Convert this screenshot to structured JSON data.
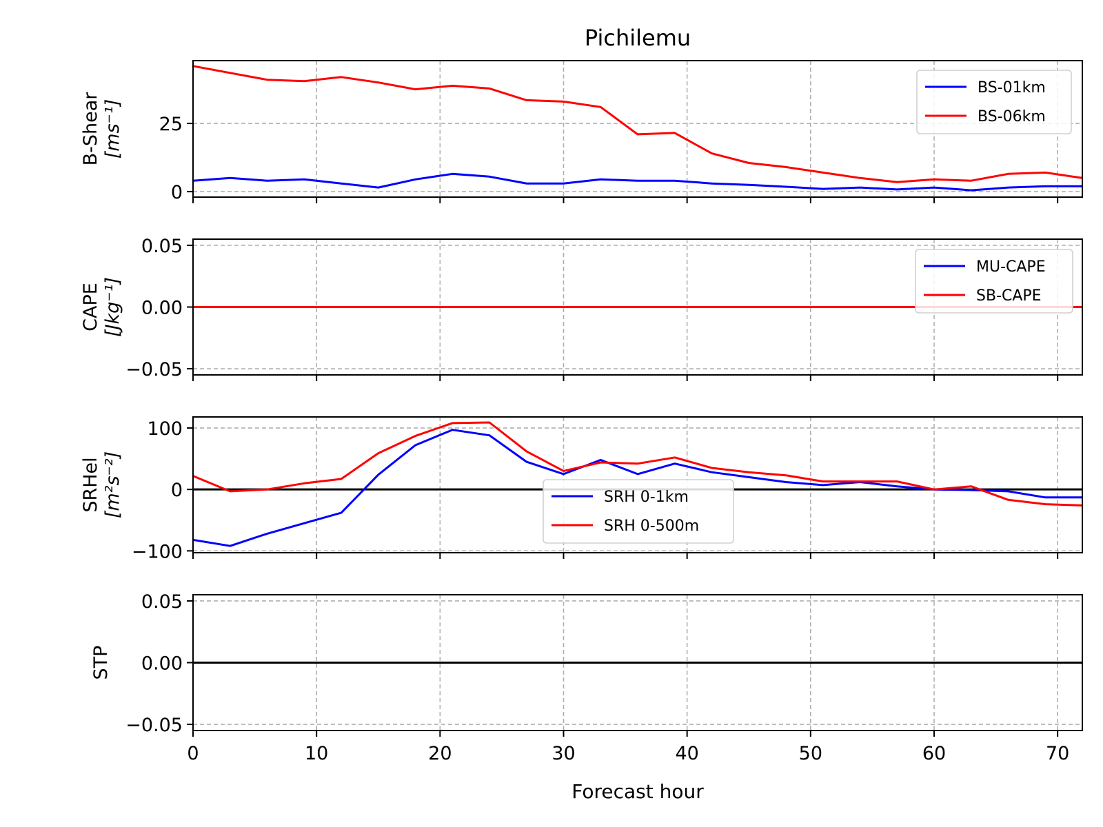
{
  "title": "Pichilemu",
  "xlabel": "Forecast hour",
  "colors": {
    "blue": "#0000ff",
    "red": "#ff0000",
    "grid": "#b0b0b0",
    "zero": "#000000"
  },
  "chart_data": [
    {
      "type": "line",
      "ylabel": [
        "B-Shear",
        "[ms⁻¹]"
      ],
      "xlim": [
        0,
        72
      ],
      "ylim": [
        -2,
        48
      ],
      "xticks": [
        0,
        10,
        20,
        30,
        40,
        50,
        60,
        70
      ],
      "yticks": [
        0,
        25
      ],
      "ytick_labels": [
        "0",
        "25"
      ],
      "grid": true,
      "zero_line": false,
      "legend": "top-right",
      "x": [
        0,
        3,
        6,
        9,
        12,
        15,
        18,
        21,
        24,
        27,
        30,
        33,
        36,
        39,
        42,
        45,
        48,
        51,
        54,
        57,
        60,
        63,
        66,
        69,
        72
      ],
      "series": [
        {
          "name": "BS-01km",
          "color": "blue",
          "values": [
            4,
            5,
            4,
            4.5,
            3,
            1.5,
            4.5,
            6.5,
            5.5,
            3,
            3,
            4.5,
            4,
            4,
            3,
            2.5,
            1.8,
            1,
            1.5,
            0.8,
            1.5,
            0.5,
            1.5,
            2,
            2
          ]
        },
        {
          "name": "BS-06km",
          "color": "red",
          "values": [
            46,
            43.5,
            41,
            40.5,
            42,
            40,
            37.5,
            38.8,
            37.8,
            33.5,
            33,
            31,
            21,
            21.5,
            14,
            10.5,
            9,
            7,
            5,
            3.5,
            4.5,
            4,
            6.5,
            7,
            5
          ]
        }
      ]
    },
    {
      "type": "line",
      "ylabel": [
        "CAPE",
        "[Jkg⁻¹]"
      ],
      "xlim": [
        0,
        72
      ],
      "ylim": [
        -0.055,
        0.055
      ],
      "xticks": [
        0,
        10,
        20,
        30,
        40,
        50,
        60,
        70
      ],
      "yticks": [
        -0.05,
        0,
        0.05
      ],
      "ytick_labels": [
        "−0.05",
        "0.00",
        "0.05"
      ],
      "grid": true,
      "zero_line": false,
      "legend": "top-right",
      "x": [
        0,
        72
      ],
      "series": [
        {
          "name": "MU-CAPE",
          "color": "blue",
          "values": [
            0,
            0
          ]
        },
        {
          "name": "SB-CAPE",
          "color": "red",
          "values": [
            0,
            0
          ]
        }
      ]
    },
    {
      "type": "line",
      "ylabel": [
        "SRHel",
        "[m²s⁻²]"
      ],
      "xlim": [
        0,
        72
      ],
      "ylim": [
        -103,
        118
      ],
      "xticks": [
        0,
        10,
        20,
        30,
        40,
        50,
        60,
        70
      ],
      "yticks": [
        -100,
        0,
        100
      ],
      "ytick_labels": [
        "−100",
        "0",
        "100"
      ],
      "grid": true,
      "zero_line": true,
      "legend": "lower-center",
      "x": [
        0,
        3,
        6,
        9,
        12,
        15,
        18,
        21,
        24,
        27,
        30,
        33,
        36,
        39,
        42,
        45,
        48,
        51,
        54,
        57,
        60,
        63,
        66,
        69,
        72
      ],
      "series": [
        {
          "name": "SRH 0-1km",
          "color": "blue",
          "values": [
            -82,
            -92,
            -72,
            -55,
            -38,
            24,
            72,
            97,
            88,
            45,
            25,
            48,
            25,
            42,
            28,
            20,
            12,
            7,
            12,
            5,
            0,
            -1,
            -3,
            -13,
            -13
          ]
        },
        {
          "name": "SRH 0-500m",
          "color": "red",
          "values": [
            22,
            -3,
            0,
            10,
            17,
            59,
            87,
            108,
            109,
            62,
            30,
            44,
            42,
            52,
            35,
            28,
            23,
            13,
            13,
            13,
            0,
            5,
            -17,
            -24,
            -26
          ]
        }
      ]
    },
    {
      "type": "line",
      "ylabel": [
        "STP"
      ],
      "xlim": [
        0,
        72
      ],
      "ylim": [
        -0.055,
        0.055
      ],
      "xticks": [
        0,
        10,
        20,
        30,
        40,
        50,
        60,
        70
      ],
      "yticks": [
        -0.05,
        0,
        0.05
      ],
      "ytick_labels": [
        "−0.05",
        "0.00",
        "0.05"
      ],
      "grid": true,
      "zero_line": true,
      "legend": "none",
      "x": [],
      "series": []
    }
  ]
}
